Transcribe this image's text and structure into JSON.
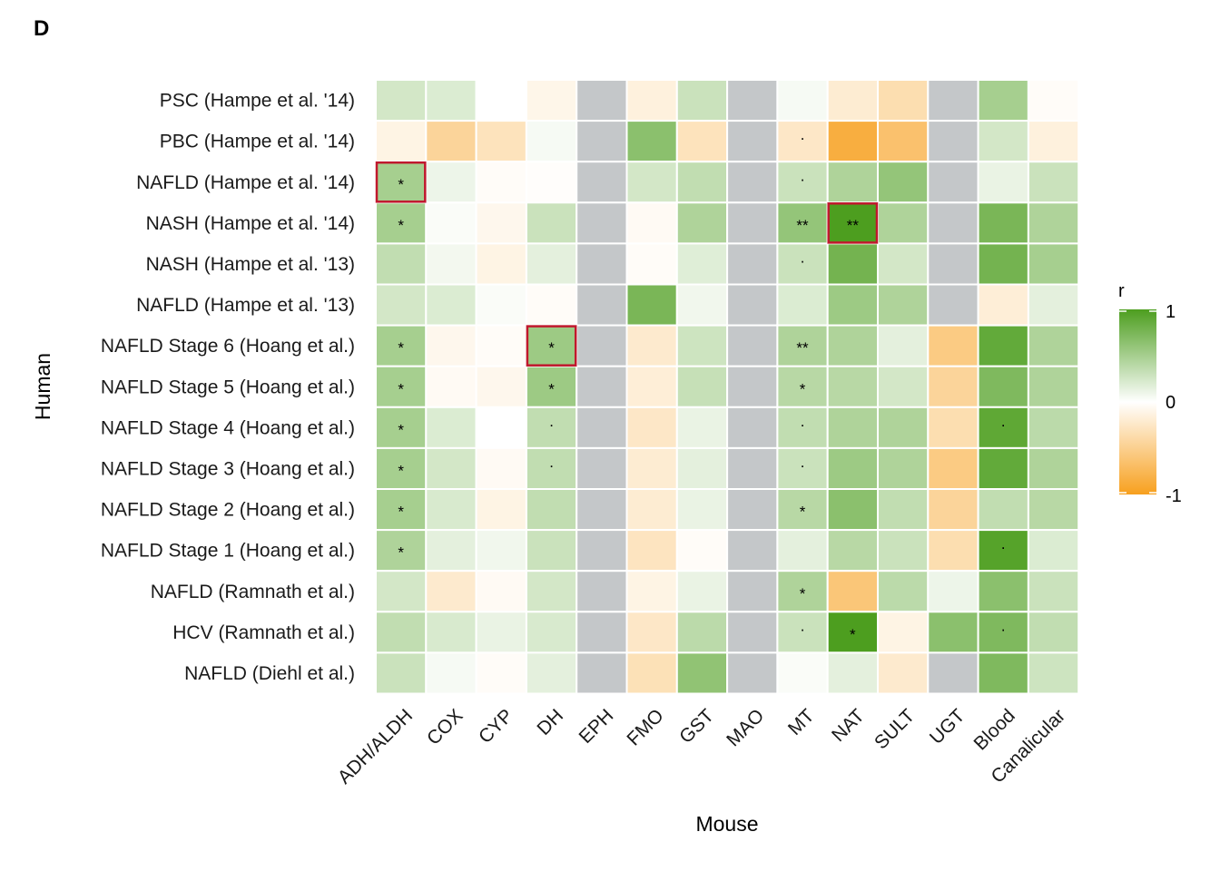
{
  "panel_label": "D",
  "chart_data": {
    "type": "heatmap",
    "title": "",
    "xlabel": "Mouse",
    "ylabel": "Human",
    "x_categories": [
      "ADH/ALDH",
      "COX",
      "CYP",
      "DH",
      "EPH",
      "FMO",
      "GST",
      "MAO",
      "MT",
      "NAT",
      "SULT",
      "UGT",
      "Blood",
      "Canalicular"
    ],
    "y_categories": [
      "PSC (Hampe et al. '14)",
      "PBC (Hampe et al. '14)",
      "NAFLD (Hampe et al. '14)",
      "NASH (Hampe et al. '14)",
      "NASH (Hampe et al. '13)",
      "NAFLD (Hampe et al. '13)",
      "NAFLD Stage 6 (Hoang et al.)",
      "NAFLD Stage 5 (Hoang et al.)",
      "NAFLD Stage 4 (Hoang et al.)",
      "NAFLD Stage 3 (Hoang et al.)",
      "NAFLD Stage 2 (Hoang et al.)",
      "NAFLD Stage 1 (Hoang et al.)",
      "NAFLD (Ramnath et al.)",
      "HCV (Ramnath et al.)",
      "NAFLD (Diehl et al.)"
    ],
    "values": [
      [
        0.25,
        0.2,
        0.0,
        -0.1,
        null,
        -0.15,
        0.3,
        null,
        0.05,
        -0.2,
        -0.35,
        null,
        0.5,
        -0.03
      ],
      [
        -0.12,
        -0.45,
        -0.3,
        0.05,
        null,
        0.65,
        -0.3,
        null,
        -0.25,
        -0.85,
        -0.65,
        null,
        0.25,
        -0.15
      ],
      [
        0.5,
        0.1,
        -0.03,
        -0.02,
        null,
        0.25,
        0.35,
        null,
        0.3,
        0.45,
        0.6,
        null,
        0.12,
        0.3
      ],
      [
        0.5,
        0.03,
        -0.08,
        0.3,
        null,
        -0.05,
        0.45,
        null,
        0.6,
        1.0,
        0.45,
        null,
        0.75,
        0.45
      ],
      [
        0.35,
        0.07,
        -0.12,
        0.15,
        null,
        -0.03,
        0.18,
        null,
        0.3,
        0.78,
        0.25,
        null,
        0.78,
        0.5
      ],
      [
        0.25,
        0.2,
        0.03,
        -0.03,
        null,
        0.75,
        0.08,
        null,
        0.2,
        0.55,
        0.45,
        null,
        -0.18,
        0.15
      ],
      [
        0.5,
        -0.08,
        -0.03,
        0.55,
        null,
        -0.22,
        0.28,
        null,
        0.45,
        0.45,
        0.15,
        -0.55,
        0.88,
        0.45
      ],
      [
        0.5,
        -0.05,
        -0.08,
        0.55,
        null,
        -0.18,
        0.32,
        null,
        0.4,
        0.4,
        0.25,
        -0.45,
        0.72,
        0.45
      ],
      [
        0.5,
        0.2,
        0.0,
        0.35,
        null,
        -0.25,
        0.12,
        null,
        0.35,
        0.45,
        0.45,
        -0.35,
        0.9,
        0.38
      ],
      [
        0.5,
        0.25,
        -0.05,
        0.35,
        null,
        -0.2,
        0.15,
        null,
        0.3,
        0.55,
        0.45,
        -0.55,
        0.88,
        0.45
      ],
      [
        0.5,
        0.22,
        -0.12,
        0.35,
        null,
        -0.2,
        0.12,
        null,
        0.4,
        0.65,
        0.35,
        -0.45,
        0.35,
        0.4
      ],
      [
        0.45,
        0.15,
        0.08,
        0.3,
        null,
        -0.28,
        -0.03,
        null,
        0.15,
        0.4,
        0.3,
        -0.35,
        0.95,
        0.2
      ],
      [
        0.25,
        -0.22,
        -0.05,
        0.25,
        null,
        -0.12,
        0.12,
        null,
        0.45,
        -0.6,
        0.38,
        0.1,
        0.65,
        0.3
      ],
      [
        0.35,
        0.22,
        0.12,
        0.22,
        null,
        -0.25,
        0.38,
        null,
        0.3,
        1.0,
        -0.12,
        0.65,
        0.72,
        0.35
      ],
      [
        0.3,
        0.05,
        -0.03,
        0.15,
        null,
        -0.32,
        0.62,
        null,
        0.03,
        0.15,
        -0.22,
        null,
        0.72,
        0.28
      ]
    ],
    "significance": [
      [
        "",
        "",
        "",
        "",
        "",
        "",
        "",
        "",
        "",
        "",
        "",
        "",
        "",
        ""
      ],
      [
        "",
        "",
        "",
        "",
        "",
        "",
        "",
        "",
        "·",
        "",
        "",
        "",
        "",
        ""
      ],
      [
        "*",
        "",
        "",
        "",
        "",
        "",
        "",
        "",
        "·",
        "",
        "",
        "",
        "",
        ""
      ],
      [
        "*",
        "",
        "",
        "",
        "",
        "",
        "",
        "",
        "**",
        "**",
        "",
        "",
        "",
        ""
      ],
      [
        "",
        "",
        "",
        "",
        "",
        "",
        "",
        "",
        "·",
        "",
        "",
        "",
        "",
        ""
      ],
      [
        "",
        "",
        "",
        "",
        "",
        "",
        "",
        "",
        "",
        "",
        "",
        "",
        "",
        ""
      ],
      [
        "*",
        "",
        "",
        "*",
        "",
        "",
        "",
        "",
        "**",
        "",
        "",
        "",
        "",
        ""
      ],
      [
        "*",
        "",
        "",
        "*",
        "",
        "",
        "",
        "",
        "*",
        "",
        "",
        "",
        "",
        ""
      ],
      [
        "*",
        "",
        "",
        "·",
        "",
        "",
        "",
        "",
        "·",
        "",
        "",
        "",
        "·",
        ""
      ],
      [
        "*",
        "",
        "",
        "·",
        "",
        "",
        "",
        "",
        "·",
        "",
        "",
        "",
        "",
        ""
      ],
      [
        "*",
        "",
        "",
        "",
        "",
        "",
        "",
        "",
        "*",
        "",
        "",
        "",
        "",
        ""
      ],
      [
        "*",
        "",
        "",
        "",
        "",
        "",
        "",
        "",
        "",
        "",
        "",
        "",
        "·",
        ""
      ],
      [
        "",
        "",
        "",
        "",
        "",
        "",
        "",
        "",
        "*",
        "",
        "",
        "",
        "",
        ""
      ],
      [
        "",
        "",
        "",
        "",
        "",
        "",
        "",
        "",
        "·",
        "*",
        "",
        "",
        "·",
        ""
      ],
      [
        "",
        "",
        "",
        "",
        "",
        "",
        "",
        "",
        "",
        "",
        "",
        "",
        "",
        ""
      ]
    ],
    "highlighted_cells": [
      [
        2,
        0
      ],
      [
        3,
        9
      ],
      [
        6,
        3
      ]
    ],
    "legend": {
      "title": "r",
      "ticks": [
        "1",
        "0",
        "-1"
      ],
      "range": [
        -1,
        1
      ]
    },
    "colors": {
      "positive": "#4d9e1f",
      "zero": "#ffffff",
      "negative": "#f7a01e",
      "missing": "#c4c7c9",
      "highlight_border": "#c0182d",
      "grid_line": "#ffffff"
    },
    "grid": false,
    "legend_position": "right"
  }
}
